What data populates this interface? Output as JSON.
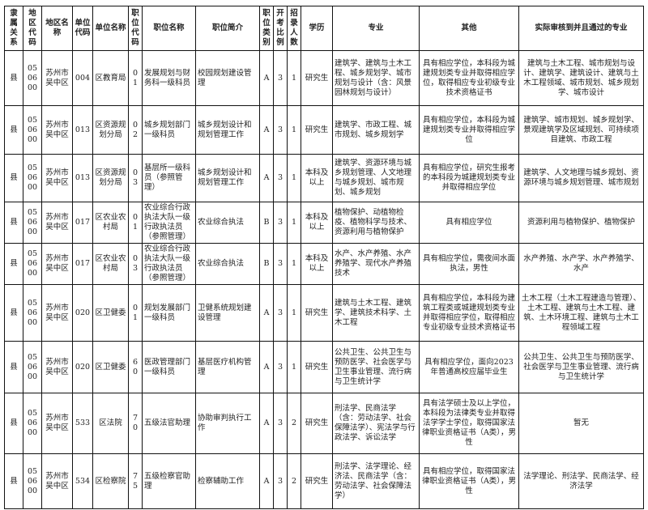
{
  "headers": [
    "隶属关系",
    "地区代码",
    "地区名称",
    "单位代码",
    "单位名称",
    "职位代码",
    "职位名称",
    "职位简介",
    "职位类别",
    "开考比例",
    "招录人数",
    "学历",
    "专业",
    "其他",
    "实际审核到并且通过的专业"
  ],
  "rows": [
    [
      "县",
      "050600",
      "苏州市吴中区",
      "004",
      "区教育局",
      "01",
      "发展规划与财务科一级科员",
      "校园规划建设管理",
      "A",
      "3",
      "1",
      "研究生",
      "建筑学、建筑与土木工程、城乡规划学、城市规划与设计（含：风景园林规划与设计）",
      "具有相应学位，本科段为城建规划类专业并取得相应学位，取得相应专业初级专业技术资格证书",
      "建筑与土木工程、城市规划与设计、建筑学、建筑设计、建筑与土木工程领域、城市规划、城乡规划学、城市设计"
    ],
    [
      "县",
      "050600",
      "苏州市吴中区",
      "013",
      "区资源规划分局",
      "02",
      "城乡规划部门一级科员",
      "城乡规划设计和规划管理工作",
      "A",
      "3",
      "1",
      "研究生",
      "建筑学、市政工程、城市规划、城乡规划学",
      "具有相应学位，本科段为城建规划类专业并取得相应学位",
      "建筑学、城市规划、城乡规划学、景观建筑学及区域规划、可持续项目建筑、市政工程"
    ],
    [
      "县",
      "050600",
      "苏州市吴中区",
      "013",
      "区资源规划分局",
      "03",
      "基层所一级科员（参照管理）",
      "城乡规划设计和规划管理工作",
      "A",
      "3",
      "1",
      "本科及以上",
      "建筑学、资源环境与城乡规划管理、人文地理与城乡规划、城市规划、城乡规划",
      "具有相应学位，研究生报考的本科段为城建规划类专业并取得相应学位",
      "建筑学、人文地理与城乡规划、资源环境与城乡规划管理、城市规划"
    ],
    [
      "县",
      "050600",
      "苏州市吴中区",
      "017",
      "区农业农村局",
      "01",
      "农业综合行政执法大队一级行政执法员（参照管理）",
      "农业综合执法",
      "B",
      "3",
      "1",
      "本科及以上",
      "植物保护、动植物检疫、植物科学与技术、资源利用与植物保护",
      "具有相应学位",
      "资源利用与植物保护、植物保护"
    ],
    [
      "县",
      "050600",
      "苏州市吴中区",
      "017",
      "区农业农村局",
      "03",
      "农业综合行政执法大队一级行政执法员（参照管理）",
      "农业综合执法",
      "B",
      "3",
      "1",
      "本科及以上",
      "水产、水产养殖、水产养殖学、现代水产养殖技术",
      "具有相应学位，需夜间水面执法，男性",
      "水产养殖、水产学、水产养殖学、水产"
    ],
    [
      "县",
      "050600",
      "苏州市吴中区",
      "020",
      "区卫健委",
      "01",
      "规划发展部门一级科员",
      "卫健系统规划建设管理",
      "A",
      "3",
      "1",
      "研究生",
      "建筑与土木工程、建筑学、建筑技术科学、土木工程",
      "具有相应学位，本科段为建筑工程类或城建规划类专业并取得相应学位，取得相应专业初级专业技术资格证书",
      "土木工程（土木工程建造与管理）、土木工程、建筑与土木工程、建筑、土木环境工程、建筑与土木工程领域工程"
    ],
    [
      "县",
      "050600",
      "苏州市吴中区",
      "020",
      "区卫健委",
      "60",
      "医政管理部门一级科员",
      "基层医疗机构管理",
      "A",
      "3",
      "1",
      "研究生",
      "公共卫生、公共卫生与预防医学、社会医学与卫生事业管理、流行病与卫生统计学",
      "具有相应学位，面向2023年普通高校应届毕业生",
      "公共卫生、公共卫生与预防医学、社会医学与卫生事业管理、流行病与卫生统计学"
    ],
    [
      "县",
      "050600",
      "苏州市吴中区",
      "533",
      "区法院",
      "70",
      "五级法官助理",
      "协助审判执行工作",
      "A",
      "3",
      "2",
      "研究生",
      "刑法学、民商法学（含：劳动法学、社会保障法学）、宪法学与行政法学、诉讼法学",
      "具有法学硕士及以上学位，本科段为法律类专业并取得法学学士学位，取得国家法律职业资格证书（A类），男性",
      "暂无"
    ],
    [
      "县",
      "050600",
      "苏州市吴中区",
      "534",
      "区检察院",
      "75",
      "五级检察官助理",
      "检察辅助工作",
      "A",
      "3",
      "2",
      "研究生",
      "刑法学、法学理论、经济法、民商法学（含：劳动法学、社会保障法学）",
      "具有相应学位，取得国家法律职业资格证书（A类），男性",
      "法学理论、刑法学、民商法学、经济法学"
    ]
  ]
}
